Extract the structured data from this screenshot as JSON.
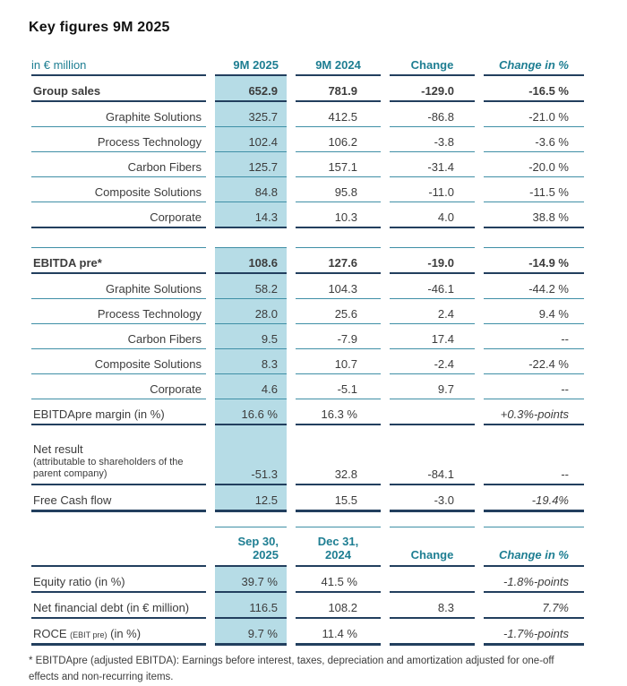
{
  "page": {
    "title": "Key figures 9M 2025",
    "footnote_line1": "* EBITDApre (adjusted EBITDA): Earnings before interest, taxes, depreciation and amortization adjusted for one-off",
    "footnote_line2": "effects and non-recurring items."
  },
  "colors": {
    "accent_teal": "#1e7e92",
    "highlight_blue": "#b6dce6",
    "line_thin": "#3f8fa6",
    "line_dark": "#223f5e"
  },
  "tables": [
    {
      "name": "main-table",
      "header": {
        "label": "in € million",
        "cols": [
          "9M 2025",
          "9M 2024",
          "Change",
          "Change in %"
        ],
        "top_border": false,
        "blue_first_col": false,
        "tall": false
      },
      "rows": [
        {
          "label": "Group sales",
          "type": "total",
          "values": [
            "652.9",
            "781.9",
            "-129.0",
            "-16.5 %"
          ],
          "border": "dark"
        },
        {
          "label": "Graphite Solutions",
          "type": "segment",
          "values": [
            "325.7",
            "412.5",
            "-86.8",
            "-21.0 %"
          ],
          "border": "thin"
        },
        {
          "label": "Process Technology",
          "type": "segment",
          "values": [
            "102.4",
            "106.2",
            "-3.8",
            "-3.6 %"
          ],
          "border": "thin"
        },
        {
          "label": "Carbon Fibers",
          "type": "segment",
          "values": [
            "125.7",
            "157.1",
            "-31.4",
            "-20.0 %"
          ],
          "border": "thin"
        },
        {
          "label": "Composite Solutions",
          "type": "segment",
          "values": [
            "84.8",
            "95.8",
            "-11.0",
            "-11.5 %"
          ],
          "border": "thin"
        },
        {
          "label": "Corporate",
          "type": "segment",
          "values": [
            "14.3",
            "10.3",
            "4.0",
            "38.8 %"
          ],
          "border": "dark"
        },
        {
          "type": "gap"
        },
        {
          "label": "EBITDA pre*",
          "type": "total",
          "values": [
            "108.6",
            "127.6",
            "-19.0",
            "-14.9 %"
          ],
          "border": "dark",
          "top": true
        },
        {
          "label": "Graphite Solutions",
          "type": "segment",
          "values": [
            "58.2",
            "104.3",
            "-46.1",
            "-44.2 %"
          ],
          "border": "thin"
        },
        {
          "label": "Process Technology",
          "type": "segment",
          "values": [
            "28.0",
            "25.6",
            "2.4",
            "9.4 %"
          ],
          "border": "thin"
        },
        {
          "label": "Carbon Fibers",
          "type": "segment",
          "values": [
            "9.5",
            "-7.9",
            "17.4",
            "--"
          ],
          "border": "thin"
        },
        {
          "label": "Composite Solutions",
          "type": "segment",
          "values": [
            "8.3",
            "10.7",
            "-2.4",
            "-22.4 %"
          ],
          "border": "thin"
        },
        {
          "label": "Corporate",
          "type": "segment",
          "values": [
            "4.6",
            "-5.1",
            "9.7",
            "--"
          ],
          "border": "thin"
        },
        {
          "label": "EBITDApre margin (in %)",
          "type": "metric",
          "values": [
            "16.6 %",
            "16.3 %",
            "",
            "+0.3%-points"
          ],
          "border": "dark",
          "italic_last": true
        },
        {
          "label": "Net result",
          "sublabel": "(attributable to shareholders of the parent company)",
          "type": "metric",
          "values": [
            "-51.3",
            "32.8",
            "-84.1",
            "--"
          ],
          "border": "dark",
          "multiline": true
        },
        {
          "label": "Free Cash flow",
          "type": "metric",
          "values": [
            "12.5",
            "15.5",
            "-3.0",
            "-19.4%"
          ],
          "border": "end",
          "italic_last": true
        }
      ]
    },
    {
      "name": "secondary-table",
      "header": {
        "label": "",
        "cols": [
          "Sep 30,\n2025",
          "Dec 31,\n2024",
          "Change",
          "Change in %"
        ],
        "top_border": true,
        "blue_first_col": true,
        "tall": true
      },
      "rows": [
        {
          "label": "Equity ratio (in %)",
          "type": "metric",
          "values": [
            "39.7 %",
            "41.5 %",
            "",
            "-1.8%-points"
          ],
          "border": "dark",
          "italic_last": true
        },
        {
          "label": "Net financial debt (in € million)",
          "type": "metric",
          "values": [
            "116.5",
            "108.2",
            "8.3",
            "7.7%"
          ],
          "border": "dark",
          "italic_last": true
        },
        {
          "label_parts": [
            "ROCE ",
            "(EBIT pre)",
            " (in %)"
          ],
          "type": "metric",
          "values": [
            "9.7 %",
            "11.4 %",
            "",
            "-1.7%-points"
          ],
          "border": "end",
          "italic_last": true
        }
      ]
    }
  ]
}
